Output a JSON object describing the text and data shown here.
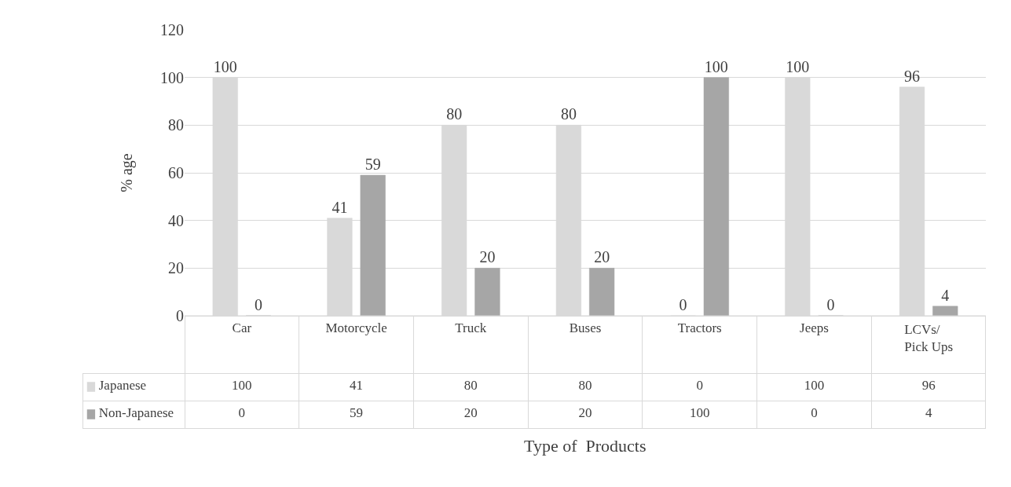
{
  "chart_data": {
    "type": "bar",
    "xlabel": "Type of  Products",
    "ylabel": "% age",
    "categories": [
      "Car",
      "Motorcycle",
      "Truck",
      "Buses",
      "Tractors",
      "Jeeps",
      "LCVs/ Pick Ups"
    ],
    "series": [
      {
        "name": "Japanese",
        "color": "#d9d9d9",
        "values": [
          100,
          41,
          80,
          80,
          0,
          100,
          96
        ],
        "value_labels": [
          "100",
          "41",
          "80",
          "80",
          "0",
          "100",
          "96"
        ]
      },
      {
        "name": "Non-Japanese",
        "color": "#a6a6a6",
        "values": [
          0,
          59,
          20,
          20,
          100,
          0,
          4
        ],
        "value_labels": [
          "0",
          "59",
          "20",
          "20",
          "100",
          "0",
          "4"
        ]
      }
    ],
    "ylim": [
      0,
      120
    ],
    "yticks": [
      0,
      20,
      40,
      60,
      80,
      100,
      120
    ],
    "grid": "y",
    "data_labels": true,
    "legend": "bottom left"
  }
}
